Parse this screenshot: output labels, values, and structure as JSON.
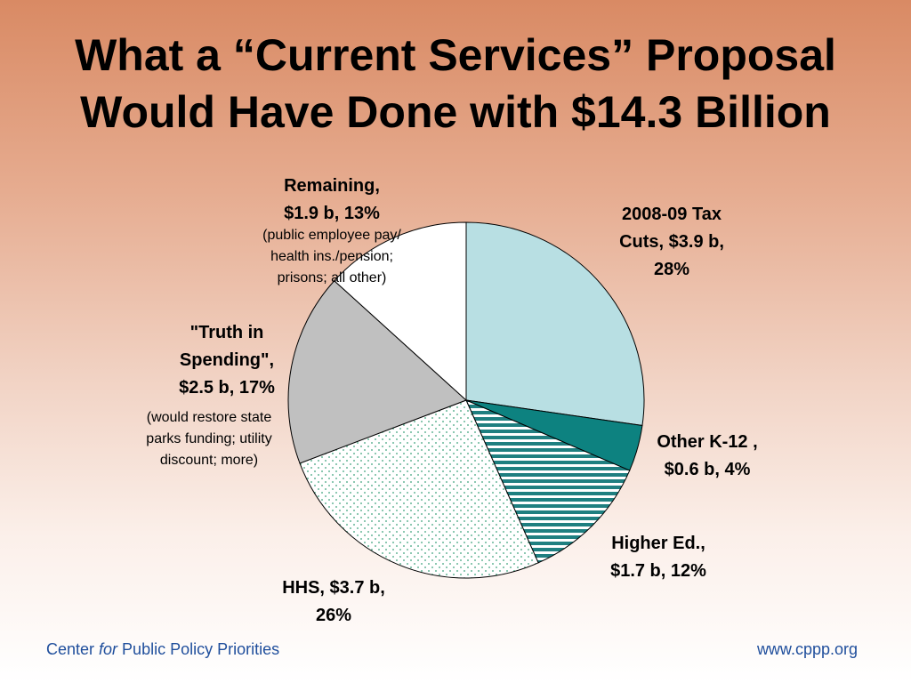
{
  "title": {
    "line1": "What a “Current Services” Proposal",
    "line2": "Would Have Done with $14.3 Billion"
  },
  "chart_data": {
    "type": "pie",
    "unit": "$ billion",
    "total": 14.3,
    "slices": [
      {
        "key": "tax",
        "label_lines": [
          "2008-09 Tax",
          "Cuts, $3.9 b,",
          "28%"
        ],
        "value": 3.9,
        "percent": 28,
        "color": "#b8dfe3",
        "pattern": "solid"
      },
      {
        "key": "k12",
        "label_lines": [
          "Other K-12 ,",
          "$0.6 b, 4%"
        ],
        "value": 0.6,
        "percent": 4,
        "color": "#0d8280",
        "pattern": "solid"
      },
      {
        "key": "highered",
        "label_lines": [
          "Higher Ed.,",
          "$1.7 b, 12%"
        ],
        "value": 1.7,
        "percent": 12,
        "color": "#1f7f80",
        "pattern": "horizontal-stripes"
      },
      {
        "key": "hhs",
        "label_lines": [
          "HHS, $3.7 b,",
          "26%"
        ],
        "value": 3.7,
        "percent": 26,
        "color": "#3aa07a",
        "pattern": "dots"
      },
      {
        "key": "truth",
        "label_lines": [
          "\"Truth in",
          "Spending\",",
          "$2.5 b, 17%"
        ],
        "note_lines": [
          "(would restore state",
          "parks funding; utility",
          "discount; more)"
        ],
        "value": 2.5,
        "percent": 17,
        "color": "#c0c0c0",
        "pattern": "solid"
      },
      {
        "key": "remaining",
        "label_lines": [
          "Remaining,",
          "$1.9 b, 13%"
        ],
        "note_lines": [
          "(public employee pay/",
          "health ins./pension;",
          "prisons; all other)"
        ],
        "value": 1.9,
        "percent": 13,
        "color": "#ffffff",
        "pattern": "solid"
      }
    ]
  },
  "footer": {
    "left_pre": "Center ",
    "left_em": "for",
    "left_post": " Public Policy Priorities",
    "right": "www.cppp.org"
  }
}
